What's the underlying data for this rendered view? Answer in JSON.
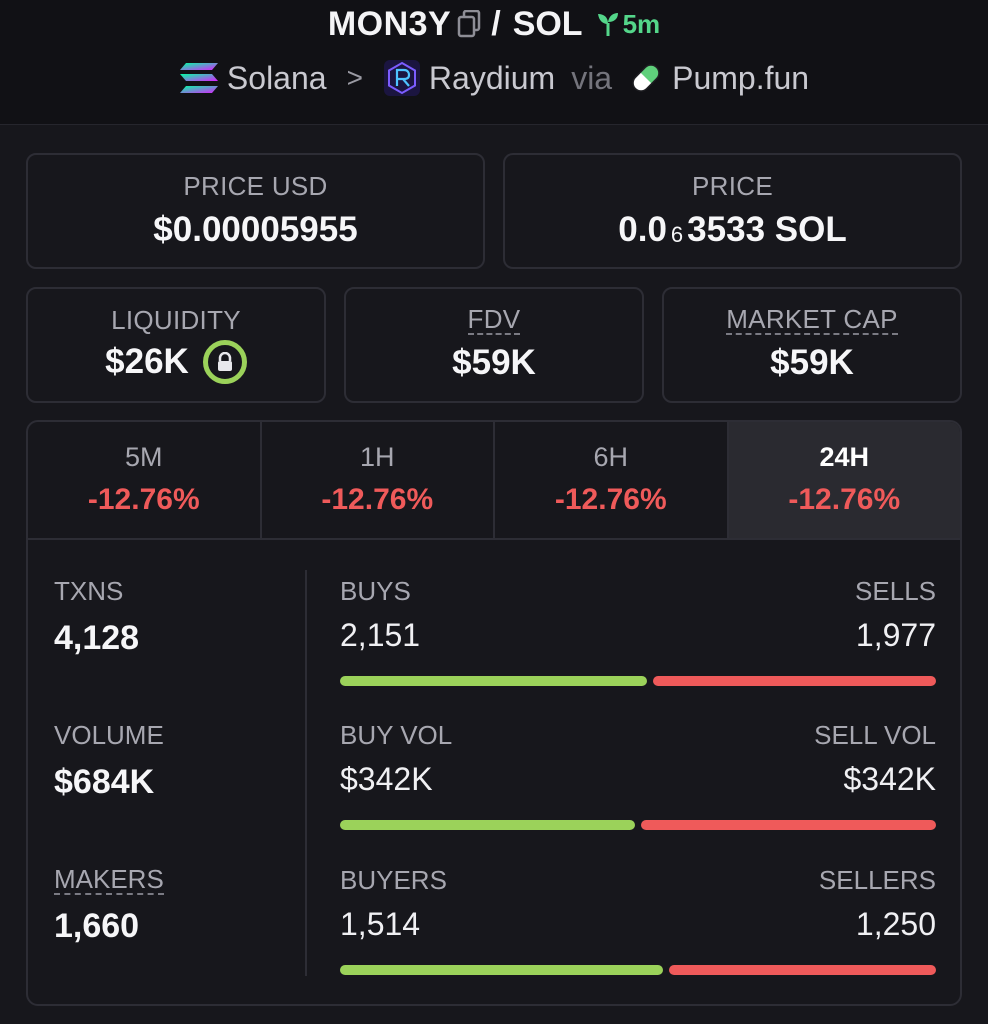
{
  "header": {
    "token": "MON3Y",
    "separator": "/",
    "quote": "SOL",
    "age": "5m",
    "chain": "Solana",
    "dex": "Raydium",
    "via": "via",
    "launchpad": "Pump.fun",
    "icons": [
      "copy-icon",
      "seedling-icon",
      "solana-logo-icon",
      "raydium-logo-icon",
      "pill-icon"
    ]
  },
  "price_usd": {
    "label": "PRICE USD",
    "value": "$0.00005955"
  },
  "price_native": {
    "label": "PRICE",
    "prefix": "0.0",
    "subscript": "6",
    "suffix": "3533 SOL"
  },
  "liquidity": {
    "label": "LIQUIDITY",
    "value": "$26K",
    "icon": "lock-icon"
  },
  "fdv": {
    "label": "FDV",
    "value": "$59K"
  },
  "market_cap": {
    "label": "MARKET CAP",
    "value": "$59K"
  },
  "tabs": [
    {
      "label": "5M",
      "change": "-12.76%"
    },
    {
      "label": "1H",
      "change": "-12.76%"
    },
    {
      "label": "6H",
      "change": "-12.76%"
    },
    {
      "label": "24H",
      "change": "-12.76%",
      "active": true
    }
  ],
  "txns": {
    "label": "TXNS",
    "value": "4,128"
  },
  "volume": {
    "label": "VOLUME",
    "value": "$684K"
  },
  "makers": {
    "label": "MAKERS",
    "value": "1,660"
  },
  "buys_sells": {
    "left_label": "BUYS",
    "left_value": "2,151",
    "right_label": "SELLS",
    "right_value": "1,977",
    "buy_fraction": 0.521
  },
  "buy_sell_vol": {
    "left_label": "BUY VOL",
    "left_value": "$342K",
    "right_label": "SELL VOL",
    "right_value": "$342K",
    "buy_fraction": 0.5
  },
  "buyers_sellers": {
    "left_label": "BUYERS",
    "left_value": "1,514",
    "right_label": "SELLERS",
    "right_value": "1,250",
    "buy_fraction": 0.548
  },
  "colors": {
    "positive": "#9bd25a",
    "negative": "#ef5a5a",
    "age": "#54d68a"
  }
}
